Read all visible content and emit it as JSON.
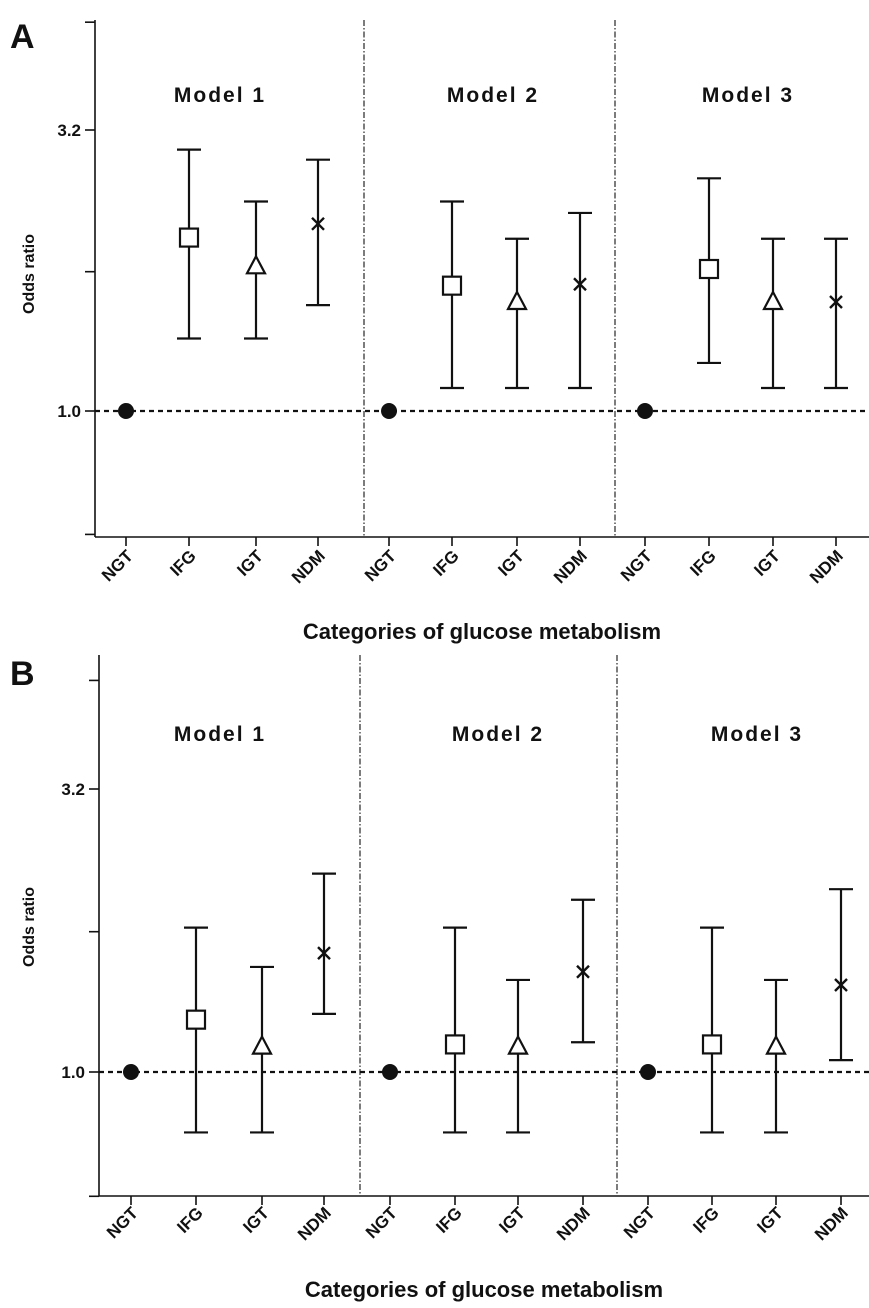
{
  "chart_data": [
    {
      "panel": "A",
      "type": "scatter",
      "xlabel": "Categories of glucose metabolism",
      "ylabel": "Odds ratio",
      "y_scale": "log",
      "yticks": [
        "3.2",
        "1.0"
      ],
      "ylim": [
        0.6,
        5.0
      ],
      "reference_line": 1.0,
      "models": [
        {
          "title": "Model 1",
          "categories": [
            "NGT",
            "IFG",
            "IGT",
            "NDM"
          ],
          "or": [
            1.0,
            2.05,
            1.82,
            2.17
          ],
          "lower": [
            null,
            1.35,
            1.35,
            1.55
          ],
          "upper": [
            null,
            2.95,
            2.38,
            2.83
          ]
        },
        {
          "title": "Model 2",
          "categories": [
            "NGT",
            "IFG",
            "IGT",
            "NDM"
          ],
          "or": [
            1.0,
            1.68,
            1.57,
            1.69
          ],
          "lower": [
            null,
            1.1,
            1.1,
            1.1
          ],
          "upper": [
            null,
            2.38,
            2.04,
            2.27
          ]
        },
        {
          "title": "Model 3",
          "categories": [
            "NGT",
            "IFG",
            "IGT",
            "NDM"
          ],
          "or": [
            1.0,
            1.8,
            1.57,
            1.57
          ],
          "lower": [
            null,
            1.22,
            1.1,
            1.1
          ],
          "upper": [
            null,
            2.62,
            2.04,
            2.04
          ]
        }
      ]
    },
    {
      "panel": "B",
      "type": "scatter",
      "xlabel": "Categories of glucose metabolism",
      "ylabel": "Odds ratio",
      "y_scale": "log",
      "yticks": [
        "3.2",
        "1.0"
      ],
      "ylim": [
        0.6,
        5.0
      ],
      "reference_line": 1.0,
      "models": [
        {
          "title": "Model 1",
          "categories": [
            "NGT",
            "IFG",
            "IGT",
            "NDM"
          ],
          "or": [
            1.0,
            1.24,
            1.11,
            1.63
          ],
          "lower": [
            null,
            0.78,
            0.78,
            1.27
          ],
          "upper": [
            null,
            1.81,
            1.54,
            2.26
          ]
        },
        {
          "title": "Model 2",
          "categories": [
            "NGT",
            "IFG",
            "IGT",
            "NDM"
          ],
          "or": [
            1.0,
            1.12,
            1.11,
            1.51
          ],
          "lower": [
            null,
            0.78,
            0.78,
            1.13
          ],
          "upper": [
            null,
            1.81,
            1.46,
            2.03
          ]
        },
        {
          "title": "Model 3",
          "categories": [
            "NGT",
            "IFG",
            "IGT",
            "NDM"
          ],
          "or": [
            1.0,
            1.12,
            1.11,
            1.43
          ],
          "lower": [
            null,
            0.78,
            0.78,
            1.05
          ],
          "upper": [
            null,
            1.81,
            1.46,
            2.12
          ]
        }
      ]
    }
  ]
}
